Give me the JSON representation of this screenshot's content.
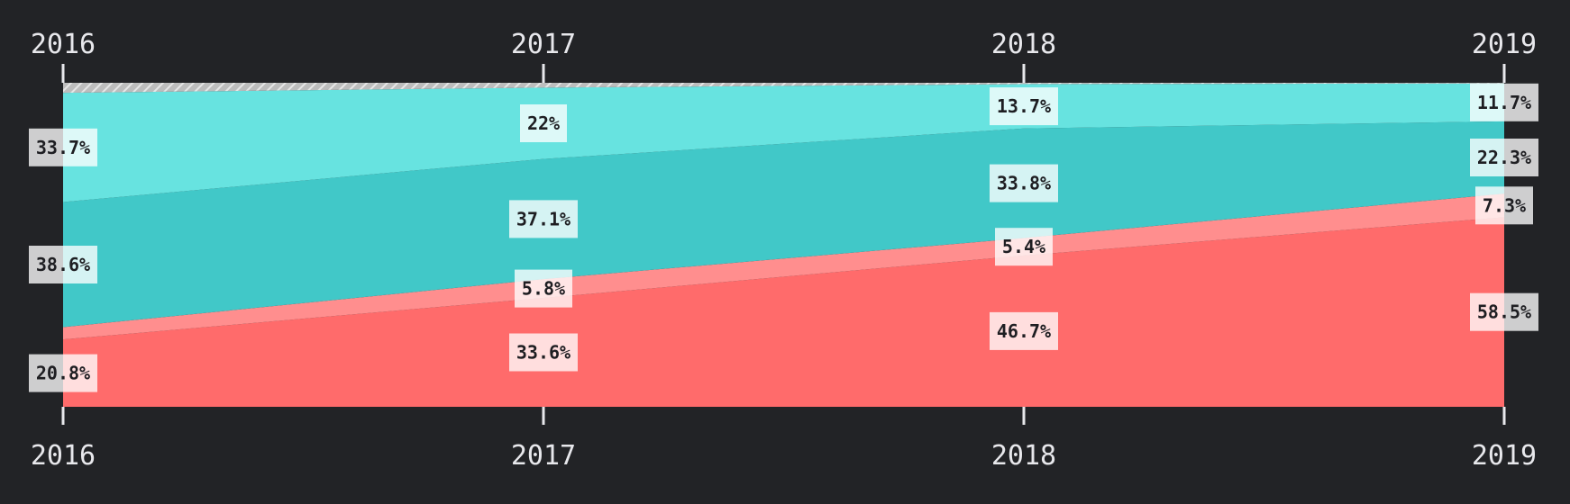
{
  "chart_data": {
    "type": "area",
    "stacked": "percent",
    "categories": [
      "2016",
      "2017",
      "2018",
      "2019"
    ],
    "series": [
      {
        "key": "s1",
        "color": "#ff6b6b",
        "values": [
          20.8,
          33.6,
          46.7,
          58.5
        ],
        "labels": [
          "20.8%",
          "33.6%",
          "46.7%",
          "58.5%"
        ]
      },
      {
        "key": "s2",
        "color": "#ff8e8e",
        "values": [
          3.8,
          5.8,
          5.4,
          7.3
        ],
        "labels": [
          null,
          "5.8%",
          "5.4%",
          "7.3%"
        ]
      },
      {
        "key": "s3",
        "color": "#41c8c8",
        "values": [
          38.6,
          37.1,
          33.8,
          22.3
        ],
        "labels": [
          "38.6%",
          "37.1%",
          "33.8%",
          "22.3%"
        ]
      },
      {
        "key": "s4",
        "color": "#67e3e0",
        "values": [
          33.7,
          22,
          13.7,
          11.7
        ],
        "labels": [
          "33.7%",
          "22%",
          "13.7%",
          "11.7%"
        ]
      },
      {
        "key": "s5",
        "color": "#c8c8c8",
        "pattern": "hatched",
        "values": [
          3.1,
          1.5,
          0.4,
          0.2
        ],
        "labels": [
          null,
          null,
          null,
          null
        ]
      }
    ],
    "ylim": [
      0,
      100
    ],
    "x_axis_labels_position": "top and bottom",
    "grid": false,
    "legend": "none"
  }
}
